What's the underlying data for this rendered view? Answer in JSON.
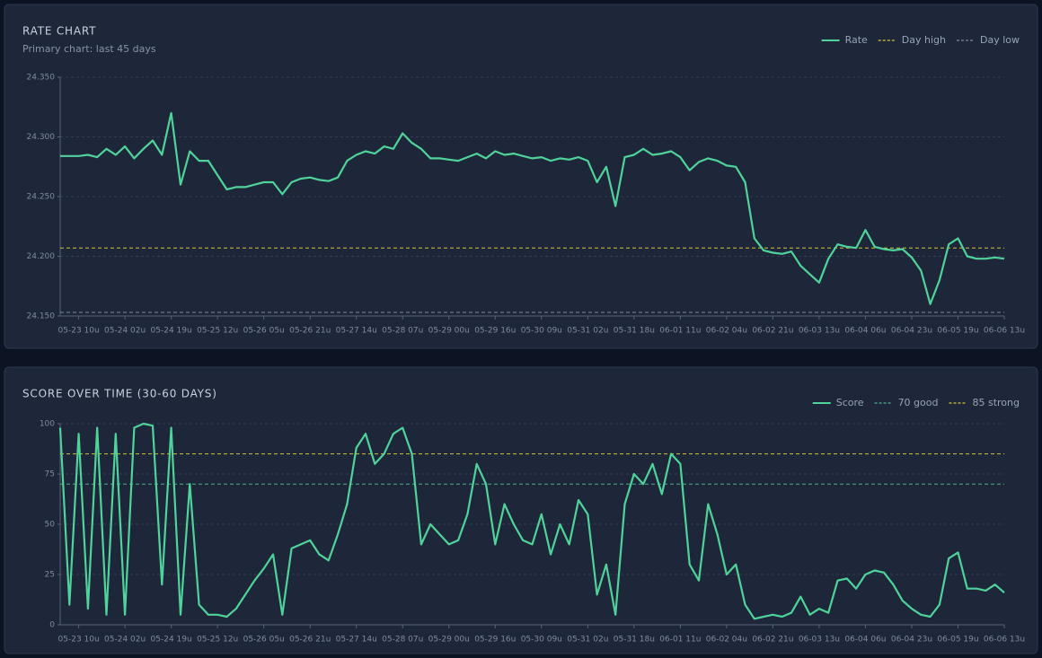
{
  "chart_data": [
    {
      "type": "line",
      "title": "RATE CHART",
      "subtitle": "Primary chart: last 45 days",
      "categories": [
        null,
        null,
        "05-23 10u",
        null,
        null,
        null,
        null,
        "05-24 02u",
        null,
        null,
        null,
        null,
        "05-24 19u",
        null,
        null,
        null,
        null,
        "05-25 12u",
        null,
        null,
        null,
        null,
        "05-26 05u",
        null,
        null,
        null,
        null,
        "05-26 21u",
        null,
        null,
        null,
        null,
        "05-27 14u",
        null,
        null,
        null,
        null,
        "05-28 07u",
        null,
        null,
        null,
        null,
        "05-29 00u",
        null,
        null,
        null,
        null,
        "05-29 16u",
        null,
        null,
        null,
        null,
        "05-30 09u",
        null,
        null,
        null,
        null,
        "05-31 02u",
        null,
        null,
        null,
        null,
        "05-31 18u",
        null,
        null,
        null,
        null,
        "06-01 11u",
        null,
        null,
        null,
        null,
        "06-02 04u",
        null,
        null,
        null,
        null,
        "06-02 21u",
        null,
        null,
        null,
        null,
        "06-03 13u",
        null,
        null,
        null,
        null,
        "06-04 06u",
        null,
        null,
        null,
        null,
        "06-04 23u",
        null,
        null,
        null,
        null,
        "06-05 19u",
        null,
        null,
        null,
        null,
        "06-06 13u"
      ],
      "series": [
        {
          "name": "Rate",
          "color": "#4fd39a",
          "values": [
            24.284,
            24.284,
            24.284,
            24.285,
            24.283,
            24.29,
            24.285,
            24.292,
            24.282,
            24.29,
            24.297,
            24.285,
            24.32,
            24.26,
            24.288,
            24.28,
            24.28,
            24.268,
            24.256,
            24.258,
            24.258,
            24.26,
            24.262,
            24.262,
            24.252,
            24.262,
            24.265,
            24.266,
            24.264,
            24.263,
            24.266,
            24.28,
            24.285,
            24.288,
            24.286,
            24.292,
            24.29,
            24.303,
            24.295,
            24.29,
            24.282,
            24.282,
            24.281,
            24.28,
            24.283,
            24.286,
            24.282,
            24.288,
            24.285,
            24.286,
            24.284,
            24.282,
            24.283,
            24.28,
            24.282,
            24.281,
            24.283,
            24.28,
            24.262,
            24.275,
            24.242,
            24.283,
            24.285,
            24.29,
            24.285,
            24.286,
            24.288,
            24.283,
            24.272,
            24.279,
            24.282,
            24.28,
            24.276,
            24.275,
            24.262,
            24.215,
            24.205,
            24.203,
            24.202,
            24.204,
            24.192,
            24.185,
            24.178,
            24.198,
            24.21,
            24.208,
            24.207,
            24.222,
            24.208,
            24.206,
            24.205,
            24.206,
            24.199,
            24.188,
            24.16,
            24.18,
            24.21,
            24.215,
            24.2,
            24.198,
            24.198,
            24.199,
            24.198
          ]
        }
      ],
      "reference_lines": [
        {
          "name": "Day high",
          "value": 24.207,
          "color": "#d4c13c"
        },
        {
          "name": "Day low",
          "value": 24.153,
          "color": "#7d889c"
        }
      ],
      "ylim": [
        24.15,
        24.35
      ],
      "yticks": [
        {
          "value": 24.15,
          "label": "24.150"
        },
        {
          "value": 24.2,
          "label": "24.200"
        },
        {
          "value": 24.25,
          "label": "24.250"
        },
        {
          "value": 24.3,
          "label": "24.300"
        },
        {
          "value": 24.35,
          "label": "24.350"
        }
      ],
      "grid": true,
      "legend": "top-right"
    },
    {
      "type": "line",
      "title": "SCORE OVER TIME (30-60 DAYS)",
      "categories": [
        null,
        null,
        "05-23 10u",
        null,
        null,
        null,
        null,
        "05-24 02u",
        null,
        null,
        null,
        null,
        "05-24 19u",
        null,
        null,
        null,
        null,
        "05-25 12u",
        null,
        null,
        null,
        null,
        "05-26 05u",
        null,
        null,
        null,
        null,
        "05-26 21u",
        null,
        null,
        null,
        null,
        "05-27 14u",
        null,
        null,
        null,
        null,
        "05-28 07u",
        null,
        null,
        null,
        null,
        "05-29 00u",
        null,
        null,
        null,
        null,
        "05-29 16u",
        null,
        null,
        null,
        null,
        "05-30 09u",
        null,
        null,
        null,
        null,
        "05-31 02u",
        null,
        null,
        null,
        null,
        "05-31 18u",
        null,
        null,
        null,
        null,
        "06-01 11u",
        null,
        null,
        null,
        null,
        "06-02 04u",
        null,
        null,
        null,
        null,
        "06-02 21u",
        null,
        null,
        null,
        null,
        "06-03 13u",
        null,
        null,
        null,
        null,
        "06-04 06u",
        null,
        null,
        null,
        null,
        "06-04 23u",
        null,
        null,
        null,
        null,
        "06-05 19u",
        null,
        null,
        null,
        null,
        "06-06 13u"
      ],
      "series": [
        {
          "name": "Score",
          "color": "#4fd39a",
          "values": [
            98,
            10,
            95,
            8,
            98,
            5,
            95,
            5,
            98,
            100,
            99,
            20,
            98,
            5,
            70,
            10,
            5,
            5,
            4,
            8,
            15,
            22,
            28,
            35,
            5,
            38,
            40,
            42,
            35,
            32,
            45,
            60,
            88,
            95,
            80,
            85,
            95,
            98,
            85,
            40,
            50,
            45,
            40,
            42,
            55,
            80,
            70,
            40,
            60,
            50,
            42,
            40,
            55,
            35,
            50,
            40,
            62,
            55,
            15,
            30,
            5,
            60,
            75,
            70,
            80,
            65,
            85,
            80,
            30,
            22,
            60,
            45,
            25,
            30,
            10,
            3,
            4,
            5,
            4,
            6,
            14,
            5,
            8,
            6,
            22,
            23,
            18,
            25,
            27,
            26,
            20,
            12,
            8,
            5,
            4,
            10,
            33,
            36,
            18,
            18,
            17,
            20,
            16
          ]
        }
      ],
      "reference_lines": [
        {
          "name": "70 good",
          "value": 70,
          "color": "#4fae8a"
        },
        {
          "name": "85 strong",
          "value": 85,
          "color": "#d4c13c"
        }
      ],
      "ylim": [
        0,
        100
      ],
      "yticks": [
        0,
        25,
        50,
        75,
        100
      ],
      "grid": true,
      "legend": "top-right"
    }
  ]
}
